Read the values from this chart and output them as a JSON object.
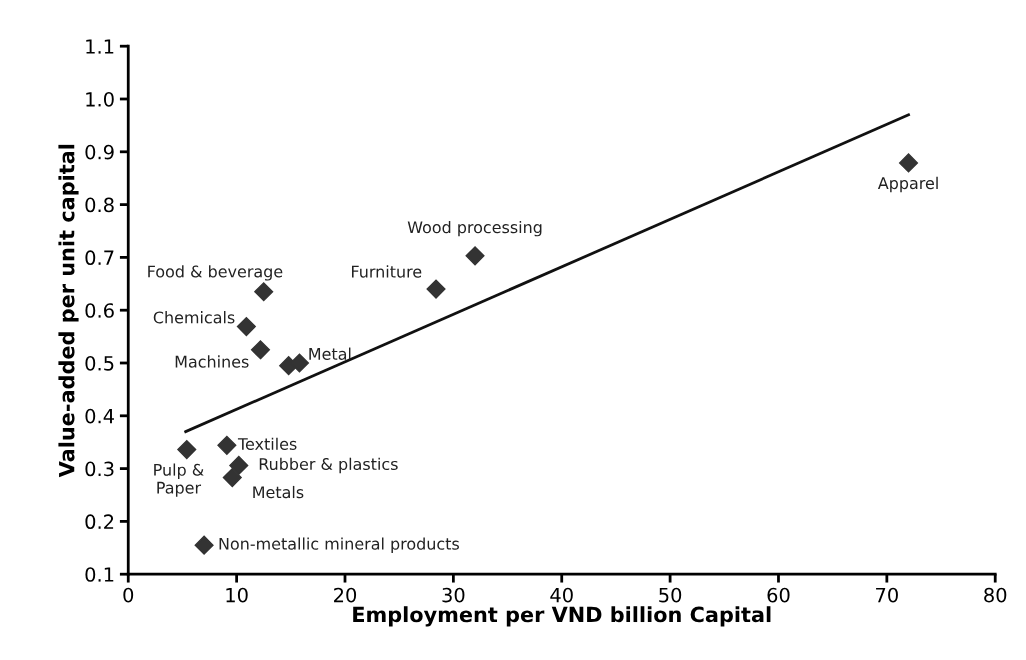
{
  "chart_data": {
    "type": "scatter",
    "xlabel": "Employment per VND billion Capital",
    "ylabel": "Value-added per unit capital",
    "xlim": [
      0,
      80
    ],
    "xticks": [
      0,
      10,
      20,
      30,
      40,
      50,
      60,
      70,
      80
    ],
    "ylim": [
      0.1,
      1.1
    ],
    "yticks": [
      {
        "value": 0.1,
        "label": "0.1"
      },
      {
        "value": 0.2,
        "label": "0.2"
      },
      {
        "value": 0.3,
        "label": "0.3"
      },
      {
        "value": 0.4,
        "label": "0.4"
      },
      {
        "value": 0.5,
        "label": "0.5"
      },
      {
        "value": 0.6,
        "label": "0.6"
      },
      {
        "value": 0.7,
        "label": "0.7"
      },
      {
        "value": 0.8,
        "label": "0.8"
      },
      {
        "value": 0.9,
        "label": "0.9"
      },
      {
        "value": 1.0,
        "label": "1.0"
      },
      {
        "value": 1.1,
        "label": "1.1"
      }
    ],
    "grid": false,
    "legend": false,
    "marker": "diamond",
    "series": [
      {
        "type": "scatter",
        "color": "#333333",
        "x": [
          12.5,
          10.9,
          12.2,
          14.8,
          15.8,
          5.4,
          9.1,
          10.2,
          9.6,
          7.0,
          28.4,
          32.0,
          72.0
        ],
        "values": [
          0.635,
          0.569,
          0.525,
          0.495,
          0.5,
          0.336,
          0.344,
          0.306,
          0.283,
          0.155,
          0.64,
          0.703,
          0.879
        ]
      },
      {
        "type": "line",
        "color": "#111111",
        "line_style": "solid",
        "marker": "none",
        "x": [
          5.3,
          72.0
        ],
        "values": [
          0.37,
          0.97
        ]
      }
    ],
    "annotations": [
      {
        "text": "Food & beverage",
        "x": 12.5,
        "y": 0.635
      },
      {
        "text": "Chemicals",
        "x": 10.9,
        "y": 0.569
      },
      {
        "text": "Machines",
        "x": 12.2,
        "y": 0.525
      },
      {
        "text": "Metal",
        "x": 15.8,
        "y": 0.5
      },
      {
        "text": "Pulp &\nPaper",
        "x": 5.4,
        "y": 0.336
      },
      {
        "text": "Textiles",
        "x": 9.1,
        "y": 0.344
      },
      {
        "text": "Rubber & plastics",
        "x": 10.2,
        "y": 0.306
      },
      {
        "text": "Metals",
        "x": 9.6,
        "y": 0.283
      },
      {
        "text": "Non-metallic mineral products",
        "x": 7.0,
        "y": 0.155
      },
      {
        "text": "Furniture",
        "x": 28.4,
        "y": 0.64
      },
      {
        "text": "Wood processing",
        "x": 32.0,
        "y": 0.703
      },
      {
        "text": "Apparel",
        "x": 72.0,
        "y": 0.879
      }
    ]
  }
}
